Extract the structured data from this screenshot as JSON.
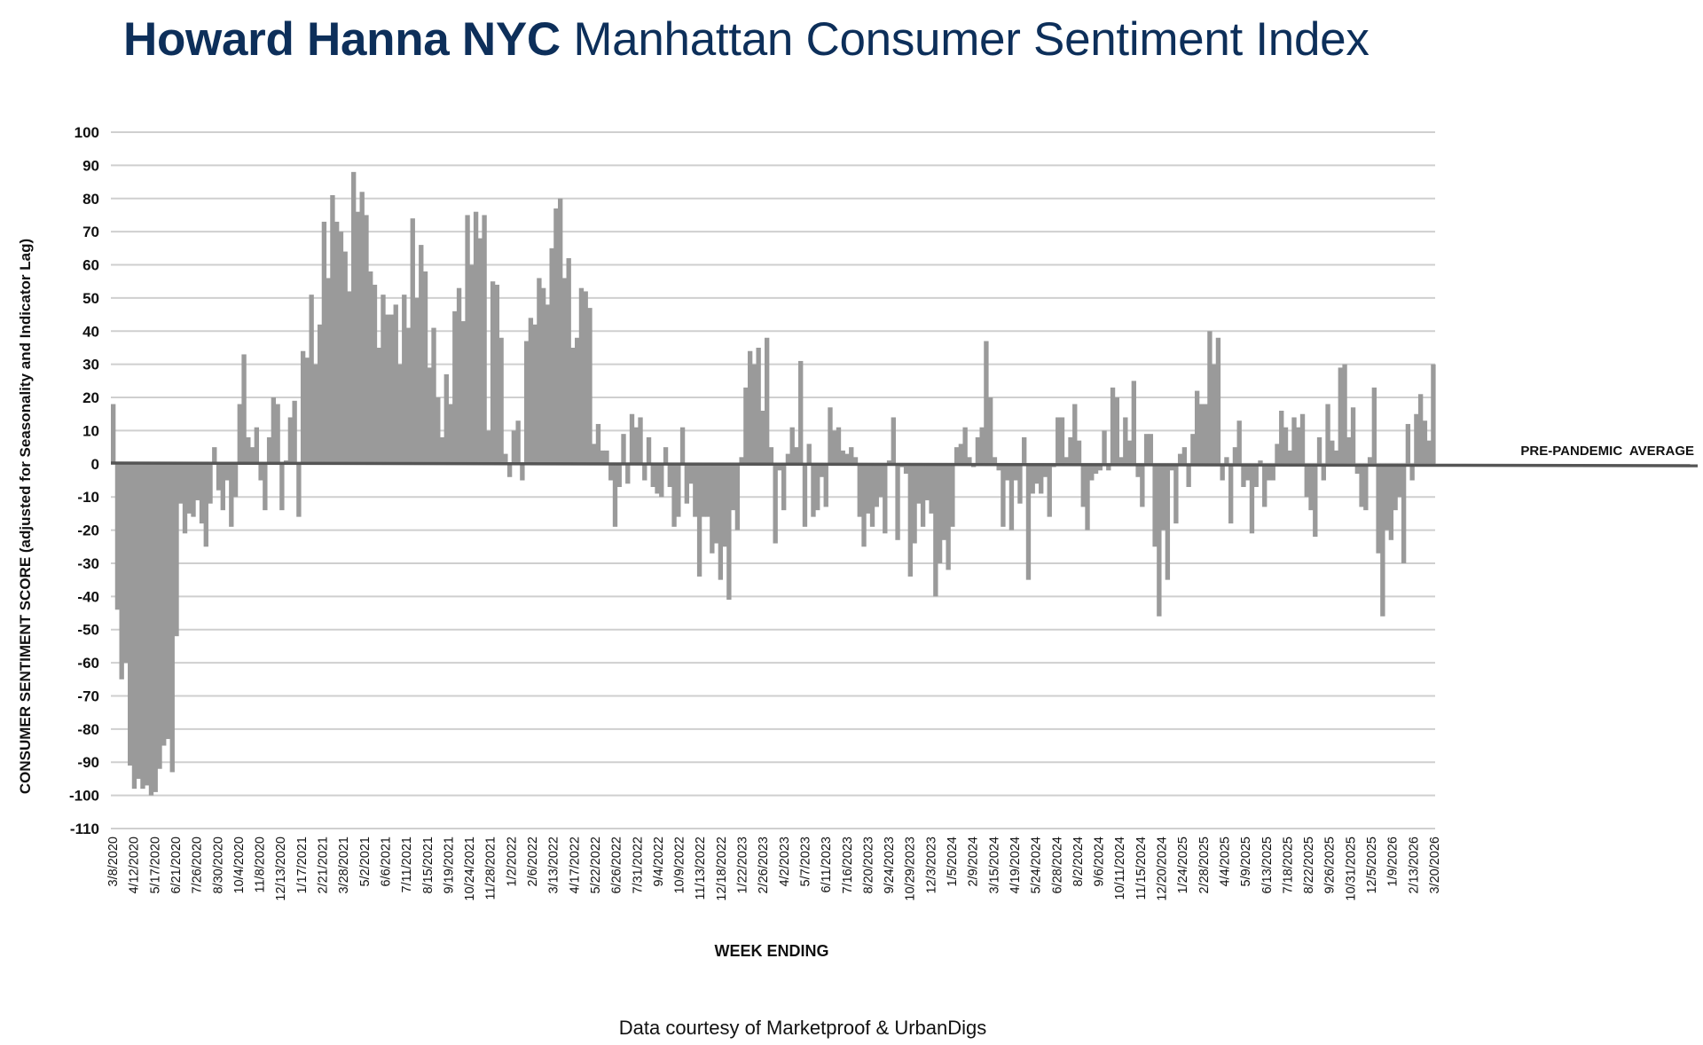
{
  "title": {
    "brand": "Howard Hanna NYC",
    "rest": "Manhattan Consumer Sentiment Index"
  },
  "credit": "Data courtesy of Marketproof & UrbanDigs",
  "colors": {
    "title": "#0d2f5a",
    "bars": "#9a9a9a",
    "baseline": "#555555",
    "grid": "#cfcfcf",
    "text": "#111111"
  },
  "chart_data": {
    "type": "bar",
    "title": "Howard Hanna NYC Manhattan Consumer Sentiment Index",
    "xlabel": "WEEK ENDING",
    "ylabel": "CONSUMER SENTIMENT SCORE (adjusted for Seasonality and Indicator Lag)",
    "ylim": [
      -110,
      100
    ],
    "yticks": [
      100,
      90,
      80,
      70,
      60,
      50,
      40,
      30,
      20,
      10,
      0,
      -10,
      -20,
      -30,
      -40,
      -50,
      -60,
      -70,
      -80,
      -90,
      -100,
      -110
    ],
    "grid": true,
    "reference_line": {
      "label": "PRE-PANDEMIC  AVERAGE",
      "value": 0
    },
    "x_tick_labels": [
      "3/8/2020",
      "4/12/2020",
      "5/17/2020",
      "6/21/2020",
      "7/26/2020",
      "8/30/2020",
      "10/4/2020",
      "11/8/2020",
      "12/13/2020",
      "1/17/2021",
      "2/21/2021",
      "3/28/2021",
      "5/2/2021",
      "6/6/2021",
      "7/11/2021",
      "8/15/2021",
      "9/19/2021",
      "10/24/2021",
      "11/28/2021",
      "1/2/2022",
      "2/6/2022",
      "3/13/2022",
      "4/17/2022",
      "5/22/2022",
      "6/26/2022",
      "7/31/2022",
      "9/4/2022",
      "10/9/2022",
      "11/13/2022",
      "12/18/2022",
      "1/22/2023",
      "2/26/2023",
      "4/2/2023",
      "5/7/2023",
      "6/11/2023",
      "7/16/2023",
      "8/20/2023",
      "9/24/2023",
      "10/29/2023",
      "12/3/2023",
      "1/5/2024",
      "2/9/2024",
      "3/15/2024",
      "4/19/2024",
      "5/24/2024",
      "6/28/2024",
      "8/2/2024",
      "9/6/2024",
      "10/11/2024",
      "11/15/2024",
      "12/20/2024",
      "1/24/2025",
      "2/28/2025",
      "4/4/2025",
      "5/9/2025",
      "6/13/2025",
      "7/18/2025",
      "8/22/2025",
      "9/26/2025",
      "10/31/2025",
      "12/5/2025",
      "1/9/2026",
      "2/13/2026",
      "3/20/2026"
    ],
    "values": [
      18,
      -44,
      -65,
      -60,
      -91,
      -98,
      -95,
      -98,
      -97,
      -100,
      -99,
      -92,
      -85,
      -83,
      -93,
      -52,
      -12,
      -21,
      -15,
      -16,
      -11,
      -18,
      -25,
      -12,
      5,
      -8,
      -14,
      -5,
      -19,
      -10,
      18,
      33,
      8,
      5,
      11,
      -5,
      -14,
      8,
      20,
      18,
      -14,
      1,
      14,
      19,
      -16,
      34,
      32,
      51,
      30,
      42,
      73,
      56,
      81,
      73,
      70,
      64,
      52,
      88,
      76,
      82,
      75,
      58,
      54,
      35,
      51,
      45,
      45,
      48,
      30,
      51,
      41,
      74,
      50,
      66,
      58,
      29,
      41,
      20,
      8,
      27,
      18,
      46,
      53,
      43,
      75,
      60,
      76,
      68,
      75,
      10,
      55,
      54,
      38,
      3,
      -4,
      10,
      13,
      -5,
      37,
      44,
      42,
      56,
      53,
      48,
      65,
      77,
      80,
      56,
      62,
      35,
      38,
      53,
      52,
      47,
      6,
      12,
      4,
      4,
      -5,
      -19,
      -7,
      9,
      -6,
      15,
      11,
      14,
      -5,
      8,
      -7,
      -9,
      -10,
      5,
      -7,
      -19,
      -16,
      11,
      -12,
      -6,
      -16,
      -34,
      -16,
      -16,
      -27,
      -24,
      -35,
      -25,
      -41,
      -14,
      -20,
      2,
      23,
      34,
      30,
      35,
      16,
      38,
      5,
      -24,
      -2,
      -14,
      3,
      11,
      5,
      31,
      -19,
      6,
      -16,
      -14,
      -4,
      -13,
      17,
      10,
      11,
      4,
      3,
      5,
      2,
      -16,
      -25,
      -15,
      -19,
      -13,
      -10,
      -21,
      1,
      14,
      -23,
      -1,
      -3,
      -34,
      -24,
      -12,
      -19,
      -11,
      -15,
      -40,
      -30,
      -23,
      -32,
      -19,
      5,
      6,
      11,
      2,
      -1,
      8,
      11,
      37,
      20,
      2,
      -2,
      -19,
      -5,
      -20,
      -5,
      -12,
      8,
      -35,
      -9,
      -6,
      -9,
      -4,
      -16,
      -1,
      14,
      14,
      2,
      8,
      18,
      7,
      -13,
      -20,
      -5,
      -3,
      -2,
      10,
      -2,
      23,
      20,
      2,
      14,
      7,
      25,
      -4,
      -13,
      9,
      9,
      -25,
      -46,
      -20,
      -35,
      -2,
      -18,
      3,
      5,
      -7,
      9,
      22,
      18,
      18,
      40,
      30,
      38,
      -5,
      2,
      -18,
      5,
      13,
      -7,
      -5,
      -21,
      -7,
      1,
      -13,
      -5,
      -5,
      6,
      16,
      11,
      4,
      14,
      11,
      15,
      -10,
      -14,
      -22,
      8,
      -5,
      18,
      7,
      4,
      29,
      30,
      8,
      17,
      -3,
      -13,
      -14,
      2,
      23,
      -27,
      -46,
      -20,
      -23,
      -14,
      -10,
      -30,
      12,
      -5,
      15,
      21,
      13,
      7,
      30
    ]
  }
}
